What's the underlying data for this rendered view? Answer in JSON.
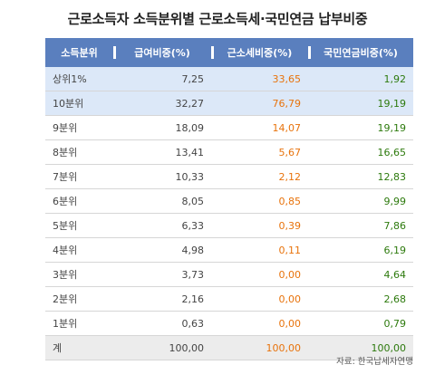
{
  "title": "근로소득자 소득분위별 근로소득세·국민연금 납부비중",
  "table": {
    "headers": [
      "소득분위",
      "급여비중(%)",
      "근소세비중(%)",
      "국민연금비중(%)"
    ],
    "rows": [
      {
        "label": "상위1%",
        "salary": "7,25",
        "tax": "33,65",
        "pension": "1,92",
        "highlight": true
      },
      {
        "label": "10분위",
        "salary": "32,27",
        "tax": "76,79",
        "pension": "19,19",
        "highlight": true
      },
      {
        "label": "9분위",
        "salary": "18,09",
        "tax": "14,07",
        "pension": "19,19",
        "highlight": false
      },
      {
        "label": "8분위",
        "salary": "13,41",
        "tax": "5,67",
        "pension": "16,65",
        "highlight": false
      },
      {
        "label": "7분위",
        "salary": "10,33",
        "tax": "2,12",
        "pension": "12,83",
        "highlight": false
      },
      {
        "label": "6분위",
        "salary": "8,05",
        "tax": "0,85",
        "pension": "9,99",
        "highlight": false
      },
      {
        "label": "5분위",
        "salary": "6,33",
        "tax": "0,39",
        "pension": "7,86",
        "highlight": false
      },
      {
        "label": "4분위",
        "salary": "4,98",
        "tax": "0,11",
        "pension": "6,19",
        "highlight": false
      },
      {
        "label": "3분위",
        "salary": "3,73",
        "tax": "0,00",
        "pension": "4,64",
        "highlight": false
      },
      {
        "label": "2분위",
        "salary": "2,16",
        "tax": "0,00",
        "pension": "2,68",
        "highlight": false
      },
      {
        "label": "1분위",
        "salary": "0,63",
        "tax": "0,00",
        "pension": "0,79",
        "highlight": false
      }
    ],
    "total": {
      "label": "계",
      "salary": "100,00",
      "tax": "100,00",
      "pension": "100,00"
    }
  },
  "source": "자료: 한국납세자연맹",
  "colors": {
    "header_bg": "#5a7fbe",
    "highlight_row_bg": "#dce8f8",
    "total_row_bg": "#ececec",
    "tax_text": "#e8730c",
    "pension_text": "#2d7a0d"
  }
}
